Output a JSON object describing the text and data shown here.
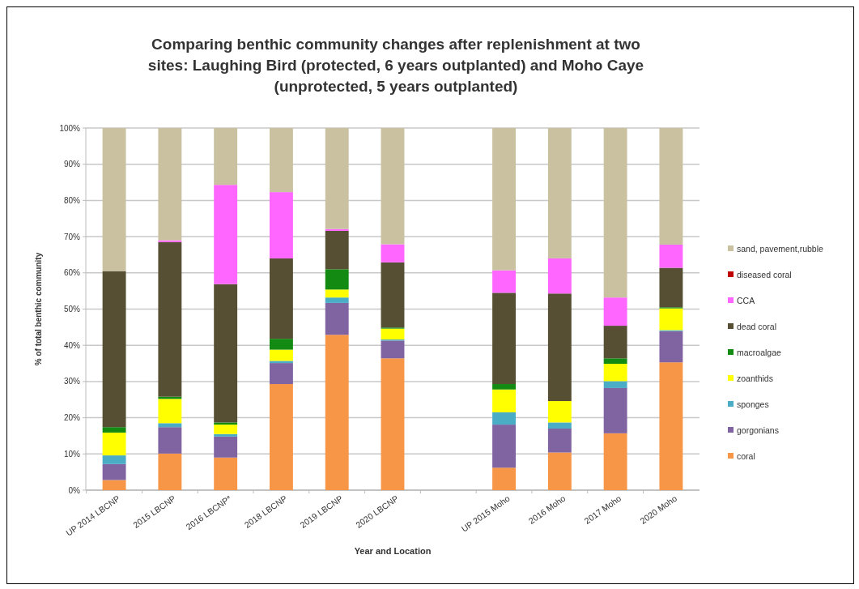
{
  "chart_data": {
    "type": "bar",
    "stacked": true,
    "title": "Comparing benthic community changes after replenishment at two sites: Laughing Bird (protected, 6 years outplanted) and Moho Caye (unprotected, 5 years outplanted)",
    "xlabel": "Year and Location",
    "ylabel": "% of total benthic community",
    "categories": [
      "UP 2014 LBCNP",
      "2015 LBCNP",
      "2016 LBCNP*",
      "2018 LBCNP",
      "2019 LBCNP",
      "2020 LBCNP",
      null,
      "UP 2015 Moho",
      "2016 Moho",
      "2017 Moho",
      "2020 Moho"
    ],
    "series": [
      {
        "name": "coral",
        "color": "#f79646",
        "values": [
          2.8,
          10.1,
          9.0,
          29.3,
          42.9,
          36.4,
          null,
          6.2,
          10.4,
          15.7,
          35.3
        ]
      },
      {
        "name": "gorgonians",
        "color": "#8064a2",
        "values": [
          4.4,
          7.3,
          5.8,
          5.8,
          8.8,
          4.9,
          null,
          11.9,
          6.6,
          12.5,
          8.6
        ]
      },
      {
        "name": "sponges",
        "color": "#4bacc6",
        "values": [
          2.4,
          1.1,
          0.7,
          0.6,
          1.5,
          0.3,
          null,
          3.4,
          1.7,
          1.9,
          0.3
        ]
      },
      {
        "name": "zoanthids",
        "color": "#ffff00",
        "values": [
          6.3,
          6.7,
          2.6,
          3.1,
          2.2,
          3.0,
          null,
          6.3,
          5.9,
          4.8,
          6.0
        ]
      },
      {
        "name": "macroalgae",
        "color": "#138a12",
        "values": [
          1.5,
          0.6,
          0.6,
          3.0,
          5.6,
          0.3,
          null,
          1.5,
          0,
          1.5,
          0.3
        ]
      },
      {
        "name": "dead coral",
        "color": "#574f33",
        "values": [
          43.1,
          42.7,
          38.2,
          22.2,
          10.6,
          18.0,
          null,
          25.2,
          29.7,
          9.0,
          10.9
        ]
      },
      {
        "name": "CCA",
        "color": "#ff66ff",
        "values": [
          0,
          0.5,
          27.4,
          18.3,
          0.5,
          5.0,
          null,
          6.2,
          9.7,
          7.8,
          6.4
        ]
      },
      {
        "name": "diseased coral",
        "color": "#c00000",
        "values": [
          0,
          0,
          0,
          0,
          0,
          0,
          null,
          0,
          0,
          0,
          0
        ]
      },
      {
        "name": "sand, pavement,rubble",
        "color": "#c9c1a0",
        "values": [
          39.5,
          31.0,
          15.7,
          17.7,
          27.9,
          32.1,
          null,
          39.3,
          36.0,
          46.8,
          32.2
        ]
      }
    ],
    "ylim": [
      0,
      100
    ],
    "yticks": [
      {
        "value": 0,
        "label": "0%"
      },
      {
        "value": 10,
        "label": "10%"
      },
      {
        "value": 20,
        "label": "20%"
      },
      {
        "value": 30,
        "label": "30%"
      },
      {
        "value": 40,
        "label": "40%"
      },
      {
        "value": 50,
        "label": "50%"
      },
      {
        "value": 60,
        "label": "60%"
      },
      {
        "value": 70,
        "label": "70%"
      },
      {
        "value": 80,
        "label": "80%"
      },
      {
        "value": 90,
        "label": "90%"
      },
      {
        "value": 100,
        "label": "100%"
      }
    ],
    "grid": "y",
    "legend": "right"
  }
}
